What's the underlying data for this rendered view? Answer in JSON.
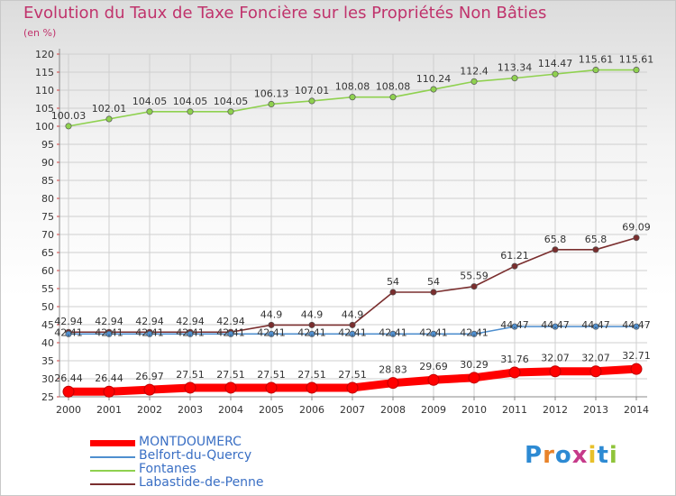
{
  "title": "Evolution du Taux de Taxe Foncière sur les Propriétés Non Bâties",
  "unit_label": "(en %)",
  "logo_text": "Proxiti",
  "colors": {
    "title": "#c0336c",
    "legend_text": "#3a6fc4",
    "grid": "#cfcfcf",
    "axis": "#888888"
  },
  "chart_data": {
    "type": "line",
    "title": "Evolution du Taux de Taxe Foncière sur les Propriétés Non Bâties",
    "ylabel": "(en %)",
    "xlabel": "",
    "x": [
      "2000",
      "2001",
      "2002",
      "2003",
      "2004",
      "2005",
      "2006",
      "2007",
      "2008",
      "2009",
      "2010",
      "2011",
      "2012",
      "2013",
      "2014"
    ],
    "ylim": [
      25,
      120
    ],
    "yticks": [
      25,
      30,
      35,
      40,
      45,
      50,
      55,
      60,
      65,
      70,
      75,
      80,
      85,
      90,
      95,
      100,
      105,
      110,
      115,
      120
    ],
    "grid": true,
    "legend_position": "bottom-left",
    "series": [
      {
        "name": "MONTDOUMERC",
        "color": "#ff0000",
        "values": [
          26.44,
          26.44,
          26.97,
          27.51,
          27.51,
          27.51,
          27.51,
          27.51,
          28.83,
          29.69,
          30.29,
          31.76,
          32.07,
          32.07,
          32.71
        ],
        "labels": [
          "26.44",
          "26.44",
          "26.97",
          "27.51",
          "27.51",
          "27.51",
          "27.51",
          "27.51",
          "28.83",
          "29.69",
          "30.29",
          "31.76",
          "32.07",
          "32.07",
          "32.71"
        ]
      },
      {
        "name": "Belfort-du-Quercy",
        "color": "#4f8fcf",
        "values": [
          42.41,
          42.41,
          42.41,
          42.41,
          42.41,
          42.41,
          42.41,
          42.41,
          42.41,
          42.41,
          42.41,
          44.47,
          44.47,
          44.47,
          44.47
        ],
        "labels": [
          "42.41",
          "42.41",
          "42.41",
          "42.41",
          "42.41",
          "42.41",
          "42.41",
          "42.41",
          "42.41",
          "42.41",
          "42.41",
          "44.47",
          "44.47",
          "44.47",
          "44.47"
        ]
      },
      {
        "name": "Fontanes",
        "color": "#8fd14f",
        "values": [
          100.03,
          102.01,
          104.05,
          104.05,
          104.05,
          106.13,
          107.01,
          108.08,
          108.08,
          110.24,
          112.4,
          113.34,
          114.47,
          115.61,
          115.61
        ],
        "labels": [
          "100.03",
          "102.01",
          "104.05",
          "104.05",
          "104.05",
          "106.13",
          "107.01",
          "108.08",
          "108.08",
          "110.24",
          "112.4",
          "113.34",
          "114.47",
          "115.61",
          "115.61"
        ]
      },
      {
        "name": "Labastide-de-Penne",
        "color": "#7a2e2e",
        "values": [
          42.94,
          42.94,
          42.94,
          42.94,
          42.94,
          44.9,
          44.9,
          44.9,
          54,
          54,
          55.59,
          61.21,
          65.8,
          65.8,
          69.09
        ],
        "labels": [
          "42.94",
          "42.94",
          "42.94",
          "42.94",
          "42.94",
          "44.9",
          "44.9",
          "44.9",
          "54",
          "54",
          "55.59",
          "61.21",
          "65.8",
          "65.8",
          "69.09"
        ]
      }
    ]
  }
}
